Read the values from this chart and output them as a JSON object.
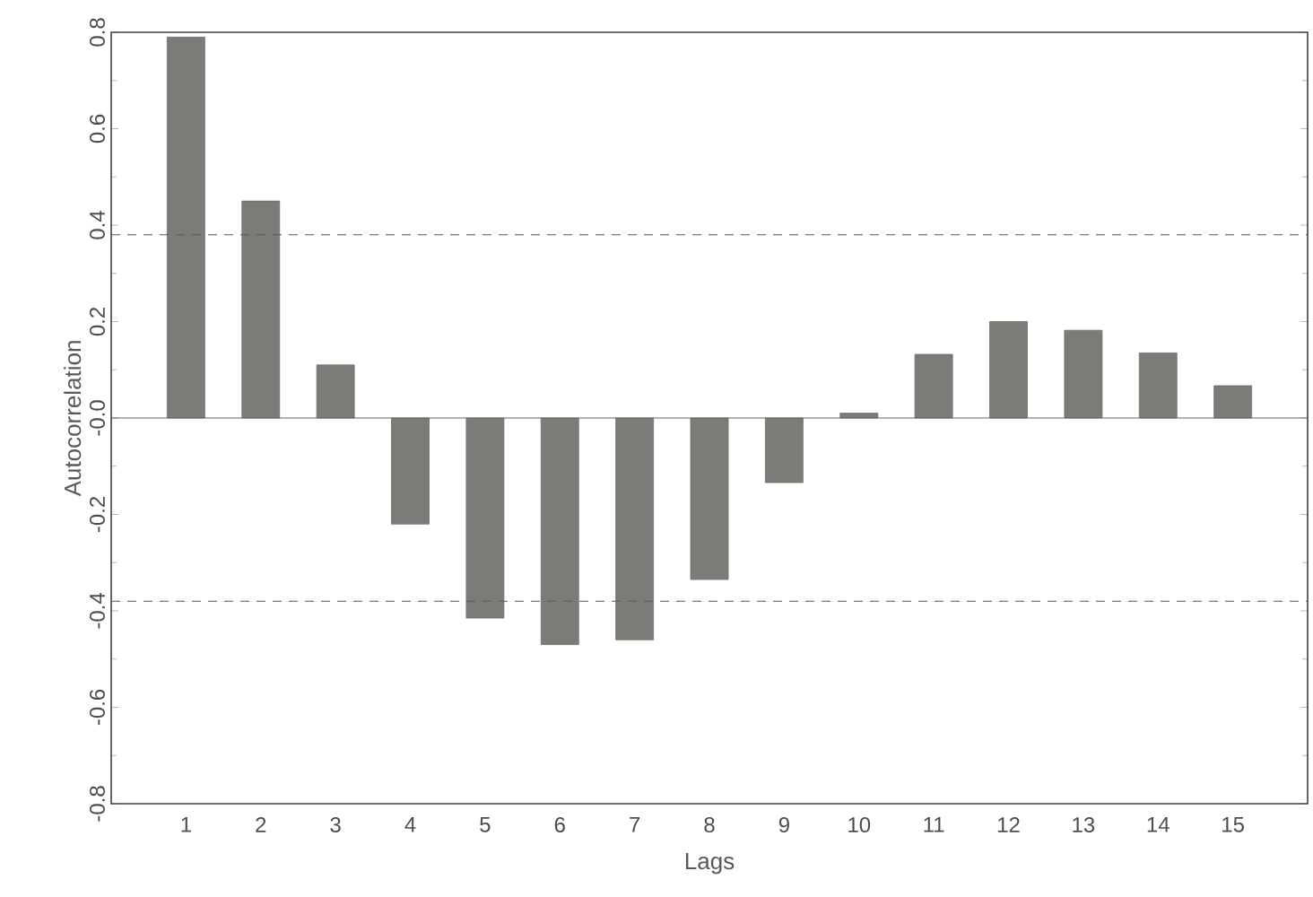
{
  "chart_data": {
    "type": "bar",
    "xlabel": "Lags",
    "ylabel": "Autocorrelation",
    "categories": [
      "1",
      "2",
      "3",
      "4",
      "5",
      "6",
      "7",
      "8",
      "9",
      "10",
      "11",
      "12",
      "13",
      "14",
      "15"
    ],
    "values": [
      0.79,
      0.45,
      0.11,
      -0.22,
      -0.415,
      -0.47,
      -0.46,
      -0.335,
      -0.134,
      0.01,
      0.132,
      0.2,
      0.182,
      0.135,
      0.067
    ],
    "color": "#7a7c78",
    "ylim": [
      -0.8,
      0.8
    ],
    "yticks": [
      -0.8,
      -0.6,
      -0.4,
      -0.2,
      {
        "value": 0,
        "label": "-0.0"
      },
      0.2,
      0.4,
      0.6,
      0.8
    ],
    "ref_lines": [
      {
        "axis": "y",
        "value": 0.38,
        "color": "#555555",
        "line_style": "dashed"
      },
      {
        "axis": "y",
        "value": -0.38,
        "color": "#555555",
        "line_style": "dashed"
      }
    ]
  }
}
